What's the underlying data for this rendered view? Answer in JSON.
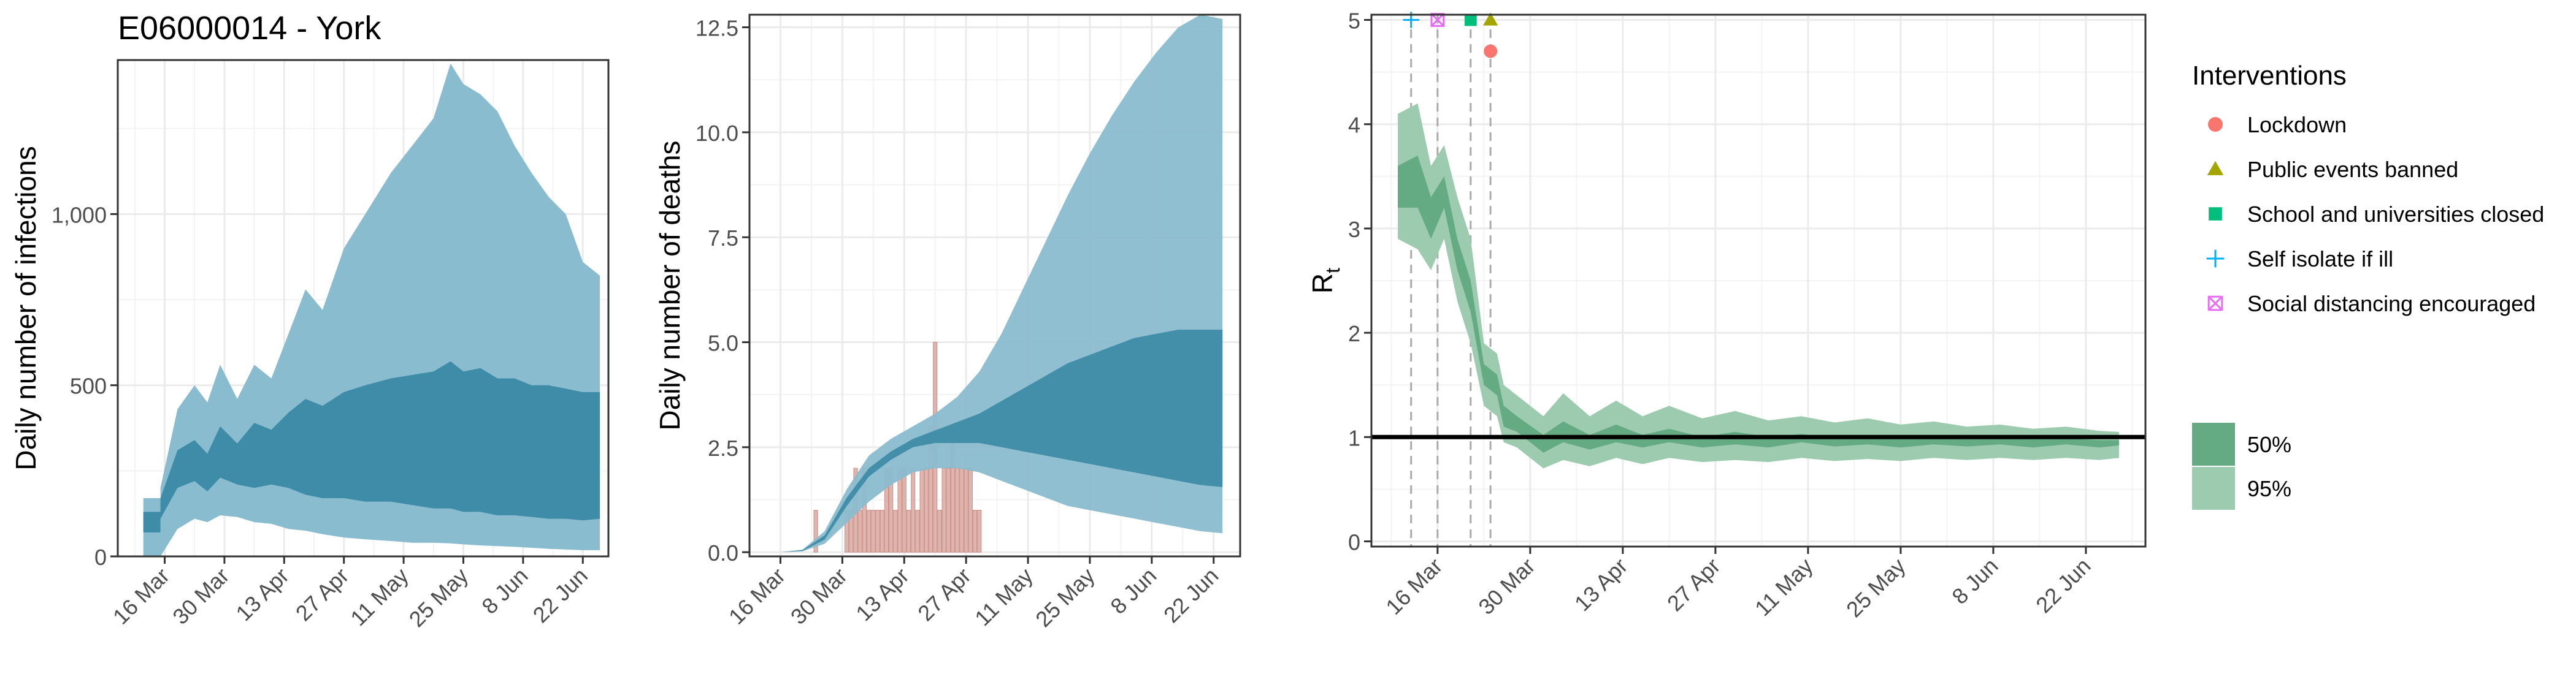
{
  "title": "E06000014 - York",
  "colors": {
    "ci_outer": "#8abccf",
    "ci_inner": "#3f8ca8",
    "death_bar": "#d9a8a0",
    "death_bar_stroke": "#c98f86",
    "rt_outer": "#9ccbaf",
    "rt_inner": "#64ab83",
    "rt_line": "#000000",
    "grid": "#ebebeb",
    "panel_border": "#333333",
    "lockdown": "#f8766d",
    "events": "#a3a500",
    "schools": "#00bf7d",
    "selfisolate": "#00b0f6",
    "distancing": "#e76bf3"
  },
  "chart_data": [
    {
      "type": "area",
      "name": "infections",
      "ylabel": "Daily number of infections",
      "xlim": [
        "2020-03-05",
        "2020-06-28"
      ],
      "ylim": [
        0,
        1450
      ],
      "x_ticks": [
        "2020-03-16",
        "2020-03-30",
        "2020-04-13",
        "2020-04-27",
        "2020-05-11",
        "2020-05-25",
        "2020-06-08",
        "2020-06-22"
      ],
      "x_tick_labels": [
        "16 Mar",
        "30 Mar",
        "13 Apr",
        "27 Apr",
        "11 May",
        "25 May",
        "8 Jun",
        "22 Jun"
      ],
      "y_ticks": [
        0,
        500,
        1000
      ],
      "y_tick_labels": [
        "0",
        "500",
        "1,000"
      ],
      "grid": true,
      "bands": {
        "x": [
          "2020-03-11",
          "2020-03-15",
          "2020-03-15",
          "2020-03-19",
          "2020-03-23",
          "2020-03-26",
          "2020-03-29",
          "2020-04-02",
          "2020-04-06",
          "2020-04-10",
          "2020-04-14",
          "2020-04-18",
          "2020-04-22",
          "2020-04-27",
          "2020-05-02",
          "2020-05-08",
          "2020-05-13",
          "2020-05-18",
          "2020-05-22",
          "2020-05-25",
          "2020-05-29",
          "2020-06-02",
          "2020-06-06",
          "2020-06-10",
          "2020-06-14",
          "2020-06-18",
          "2020-06-22",
          "2020-06-26"
        ],
        "outer_lower": [
          0,
          0,
          0,
          80,
          110,
          100,
          120,
          115,
          100,
          95,
          80,
          75,
          65,
          55,
          50,
          45,
          40,
          40,
          38,
          35,
          32,
          30,
          28,
          25,
          22,
          20,
          18,
          18
        ],
        "outer_upper": [
          170,
          170,
          200,
          430,
          500,
          450,
          560,
          460,
          560,
          520,
          650,
          780,
          720,
          900,
          1000,
          1120,
          1200,
          1280,
          1440,
          1380,
          1350,
          1300,
          1200,
          1120,
          1050,
          1000,
          860,
          820
        ],
        "inner_lower": [
          70,
          70,
          110,
          200,
          220,
          190,
          230,
          210,
          200,
          210,
          200,
          180,
          170,
          170,
          160,
          160,
          150,
          140,
          140,
          130,
          130,
          120,
          120,
          115,
          110,
          110,
          105,
          110
        ],
        "inner_upper": [
          130,
          130,
          170,
          310,
          340,
          300,
          380,
          330,
          390,
          370,
          420,
          460,
          440,
          480,
          500,
          520,
          530,
          540,
          570,
          540,
          550,
          520,
          520,
          500,
          500,
          490,
          480,
          480
        ]
      }
    },
    {
      "type": "area",
      "name": "deaths",
      "ylabel": "Daily number of deaths",
      "xlim": [
        "2020-03-09",
        "2020-06-28"
      ],
      "ylim": [
        -0.1,
        12.8
      ],
      "x_ticks": [
        "2020-03-16",
        "2020-03-30",
        "2020-04-13",
        "2020-04-27",
        "2020-05-11",
        "2020-05-25",
        "2020-06-08",
        "2020-06-22"
      ],
      "x_tick_labels": [
        "16 Mar",
        "30 Mar",
        "13 Apr",
        "27 Apr",
        "11 May",
        "25 May",
        "8 Jun",
        "22 Jun"
      ],
      "y_ticks": [
        0,
        2.5,
        5,
        7.5,
        10,
        12.5
      ],
      "y_tick_labels": [
        "0.0",
        "2.5",
        "5.0",
        "7.5",
        "10.0",
        "12.5"
      ],
      "grid": true,
      "bands": {
        "x": [
          "2020-03-16",
          "2020-03-21",
          "2020-03-26",
          "2020-03-31",
          "2020-04-05",
          "2020-04-10",
          "2020-04-15",
          "2020-04-20",
          "2020-04-25",
          "2020-04-30",
          "2020-05-05",
          "2020-05-10",
          "2020-05-15",
          "2020-05-20",
          "2020-05-25",
          "2020-05-30",
          "2020-06-04",
          "2020-06-09",
          "2020-06-14",
          "2020-06-19",
          "2020-06-24"
        ],
        "outer_lower": [
          0,
          0.02,
          0.2,
          0.7,
          1.2,
          1.6,
          1.9,
          2.0,
          2.0,
          1.9,
          1.7,
          1.5,
          1.3,
          1.1,
          1.0,
          0.9,
          0.8,
          0.7,
          0.6,
          0.5,
          0.45
        ],
        "outer_upper": [
          0,
          0.06,
          0.5,
          1.5,
          2.3,
          2.7,
          3.0,
          3.3,
          3.7,
          4.3,
          5.2,
          6.3,
          7.4,
          8.5,
          9.5,
          10.4,
          11.2,
          11.9,
          12.5,
          12.8,
          12.7
        ],
        "inner_lower": [
          0,
          0.03,
          0.3,
          1.1,
          1.8,
          2.2,
          2.5,
          2.6,
          2.6,
          2.6,
          2.5,
          2.4,
          2.3,
          2.2,
          2.1,
          2.0,
          1.9,
          1.8,
          1.7,
          1.6,
          1.55
        ],
        "inner_upper": [
          0,
          0.05,
          0.4,
          1.3,
          2.0,
          2.4,
          2.7,
          2.9,
          3.1,
          3.3,
          3.6,
          3.9,
          4.2,
          4.5,
          4.7,
          4.9,
          5.1,
          5.2,
          5.3,
          5.3,
          5.3
        ]
      },
      "observed": {
        "x": [
          "2020-03-24",
          "2020-03-31",
          "2020-04-01",
          "2020-04-02",
          "2020-04-03",
          "2020-04-04",
          "2020-04-05",
          "2020-04-06",
          "2020-04-07",
          "2020-04-08",
          "2020-04-09",
          "2020-04-10",
          "2020-04-11",
          "2020-04-12",
          "2020-04-13",
          "2020-04-14",
          "2020-04-15",
          "2020-04-16",
          "2020-04-17",
          "2020-04-18",
          "2020-04-19",
          "2020-04-20",
          "2020-04-21",
          "2020-04-22",
          "2020-04-23",
          "2020-04-24",
          "2020-04-25",
          "2020-04-26",
          "2020-04-27",
          "2020-04-28",
          "2020-04-29",
          "2020-04-30"
        ],
        "values": [
          1,
          1,
          1,
          2,
          1,
          2,
          1,
          1,
          1,
          1,
          2,
          2,
          1,
          2,
          2,
          1,
          2,
          1,
          2,
          2,
          3,
          5,
          1,
          2,
          2,
          3,
          2,
          2,
          2,
          2,
          1,
          1
        ]
      }
    },
    {
      "type": "area",
      "name": "rt",
      "ylabel": "R",
      "ylabel_sub": "t",
      "xlim": [
        "2020-03-06",
        "2020-07-01"
      ],
      "ylim": [
        -0.05,
        5.05
      ],
      "x_ticks": [
        "2020-03-16",
        "2020-03-30",
        "2020-04-13",
        "2020-04-27",
        "2020-05-11",
        "2020-05-25",
        "2020-06-08",
        "2020-06-22"
      ],
      "x_tick_labels": [
        "16 Mar",
        "30 Mar",
        "13 Apr",
        "27 Apr",
        "11 May",
        "25 May",
        "8 Jun",
        "22 Jun"
      ],
      "y_ticks": [
        0,
        1,
        2,
        3,
        4,
        5
      ],
      "y_tick_labels": [
        "0",
        "1",
        "2",
        "3",
        "4",
        "5"
      ],
      "reference_line": 1,
      "grid": true,
      "bands": {
        "x": [
          "2020-03-10",
          "2020-03-13",
          "2020-03-15",
          "2020-03-17",
          "2020-03-19",
          "2020-03-21",
          "2020-03-23",
          "2020-03-25",
          "2020-03-26",
          "2020-03-28",
          "2020-04-01",
          "2020-04-04",
          "2020-04-08",
          "2020-04-12",
          "2020-04-16",
          "2020-04-20",
          "2020-04-25",
          "2020-04-30",
          "2020-05-05",
          "2020-05-10",
          "2020-05-15",
          "2020-05-20",
          "2020-05-25",
          "2020-05-30",
          "2020-06-04",
          "2020-06-09",
          "2020-06-14",
          "2020-06-19",
          "2020-06-24",
          "2020-06-27"
        ],
        "outer_lower": [
          2.9,
          2.8,
          2.6,
          2.9,
          2.3,
          1.9,
          1.3,
          1.2,
          0.95,
          0.9,
          0.7,
          0.78,
          0.72,
          0.8,
          0.74,
          0.8,
          0.76,
          0.78,
          0.76,
          0.8,
          0.77,
          0.79,
          0.77,
          0.8,
          0.78,
          0.8,
          0.78,
          0.8,
          0.78,
          0.8
        ],
        "outer_upper": [
          4.1,
          4.2,
          3.6,
          3.8,
          3.3,
          2.9,
          1.9,
          1.8,
          1.5,
          1.4,
          1.2,
          1.42,
          1.2,
          1.35,
          1.2,
          1.3,
          1.18,
          1.25,
          1.16,
          1.2,
          1.14,
          1.18,
          1.12,
          1.15,
          1.1,
          1.12,
          1.08,
          1.1,
          1.06,
          1.05
        ],
        "inner_lower": [
          3.2,
          3.2,
          2.9,
          3.2,
          2.6,
          2.2,
          1.5,
          1.4,
          1.1,
          1.05,
          0.85,
          0.95,
          0.88,
          0.95,
          0.9,
          0.95,
          0.9,
          0.93,
          0.9,
          0.95,
          0.91,
          0.93,
          0.9,
          0.93,
          0.91,
          0.93,
          0.9,
          0.93,
          0.9,
          0.92
        ],
        "inner_upper": [
          3.6,
          3.7,
          3.3,
          3.5,
          2.9,
          2.5,
          1.7,
          1.6,
          1.3,
          1.2,
          1.02,
          1.15,
          1.02,
          1.12,
          1.02,
          1.08,
          1.0,
          1.05,
          1.0,
          1.03,
          0.99,
          1.02,
          0.99,
          1.01,
          0.98,
          1.0,
          0.98,
          0.99,
          0.97,
          0.97
        ]
      },
      "interventions": [
        {
          "id": "selfisolate",
          "date": "2020-03-12",
          "y": 5.0
        },
        {
          "id": "distancing",
          "date": "2020-03-16",
          "y": 5.0
        },
        {
          "id": "schools",
          "date": "2020-03-21",
          "y": 5.0
        },
        {
          "id": "events",
          "date": "2020-03-24",
          "y": 5.0
        },
        {
          "id": "lockdown",
          "date": "2020-03-24",
          "y": 4.7
        }
      ],
      "intervention_lines": [
        "2020-03-12",
        "2020-03-16",
        "2020-03-21",
        "2020-03-24"
      ]
    }
  ],
  "legend": {
    "title": "Interventions",
    "placement": "right",
    "items": [
      {
        "id": "lockdown",
        "shape": "circle",
        "label": "Lockdown"
      },
      {
        "id": "events",
        "shape": "triangle",
        "label": "Public events banned"
      },
      {
        "id": "schools",
        "shape": "square",
        "label": "School and universities closed"
      },
      {
        "id": "selfisolate",
        "shape": "plus",
        "label": "Self isolate if ill"
      },
      {
        "id": "distancing",
        "shape": "boxcross",
        "label": "Social distancing encouraged"
      }
    ],
    "ci_items": [
      {
        "label": "50%",
        "color": "rt_inner"
      },
      {
        "label": "95%",
        "color": "rt_outer"
      }
    ]
  }
}
